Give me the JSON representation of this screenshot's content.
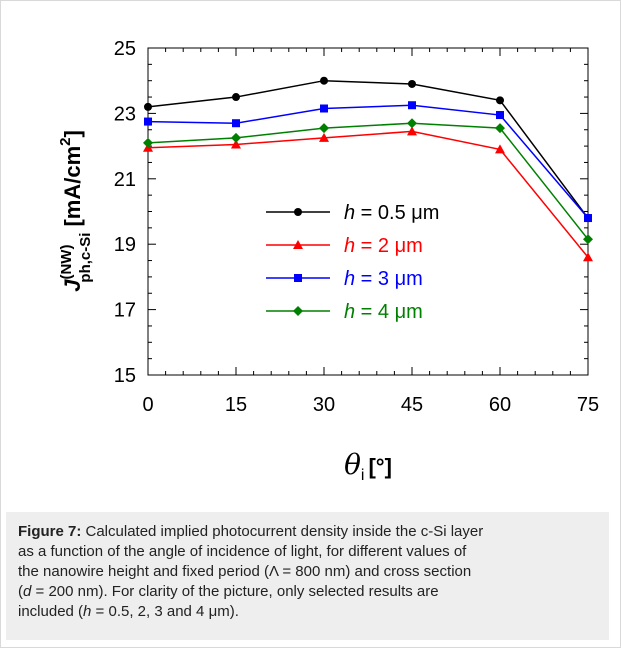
{
  "chart_data": {
    "type": "line",
    "x": [
      0,
      15,
      30,
      45,
      60,
      75
    ],
    "xlim": [
      0,
      75
    ],
    "ylim": [
      15,
      25
    ],
    "xticks": [
      "0",
      "15",
      "30",
      "45",
      "60",
      "75"
    ],
    "yticks": [
      "15",
      "17",
      "19",
      "21",
      "23",
      "25"
    ],
    "xlabel": {
      "symbol": "θ",
      "sub": "i",
      "unit": "[°]"
    },
    "ylabel": {
      "symbol": "J",
      "sup": "(NW)",
      "sub": "ph,c-Si",
      "unit": "[mA/cm",
      "unit_sup": "2",
      "unit_end": "]"
    },
    "legend_position": "center",
    "grid": false,
    "series": [
      {
        "name": "h = 0.5 μm",
        "h_label": "h",
        "rest_label": " = 0.5 μm",
        "color": "#000000",
        "marker": "circle",
        "values": [
          23.2,
          23.5,
          24.0,
          23.9,
          23.4,
          19.8
        ]
      },
      {
        "name": "h = 2 μm",
        "h_label": "h",
        "rest_label": " = 2 μm",
        "color": "#ff0000",
        "marker": "triangle",
        "values": [
          21.95,
          22.05,
          22.25,
          22.45,
          21.9,
          18.6
        ]
      },
      {
        "name": "h = 3 μm",
        "h_label": "h",
        "rest_label": " = 3 μm",
        "color": "#0000ff",
        "marker": "square",
        "values": [
          22.75,
          22.7,
          23.15,
          23.25,
          22.95,
          19.8
        ]
      },
      {
        "name": "h = 4 μm",
        "h_label": "h",
        "rest_label": " = 4 μm",
        "color": "#008000",
        "marker": "diamond",
        "values": [
          22.1,
          22.25,
          22.55,
          22.7,
          22.55,
          19.15
        ]
      }
    ]
  },
  "caption": {
    "label": "Figure 7:",
    "line1": " Calculated implied photocurrent density inside the c-Si layer",
    "line2": "as a function of the angle of incidence of light, for different values of",
    "line3": "the nanowire height and fixed period (Λ = 800 nm) and cross section",
    "line4_d": "d",
    "line4_rest": " = 200 nm). For clarity of the picture, only selected results are",
    "line4_open": "(",
    "line5_open": "included (",
    "line5_h": "h",
    "line5_rest": " = 0.5, 2, 3 and 4 μm)."
  }
}
